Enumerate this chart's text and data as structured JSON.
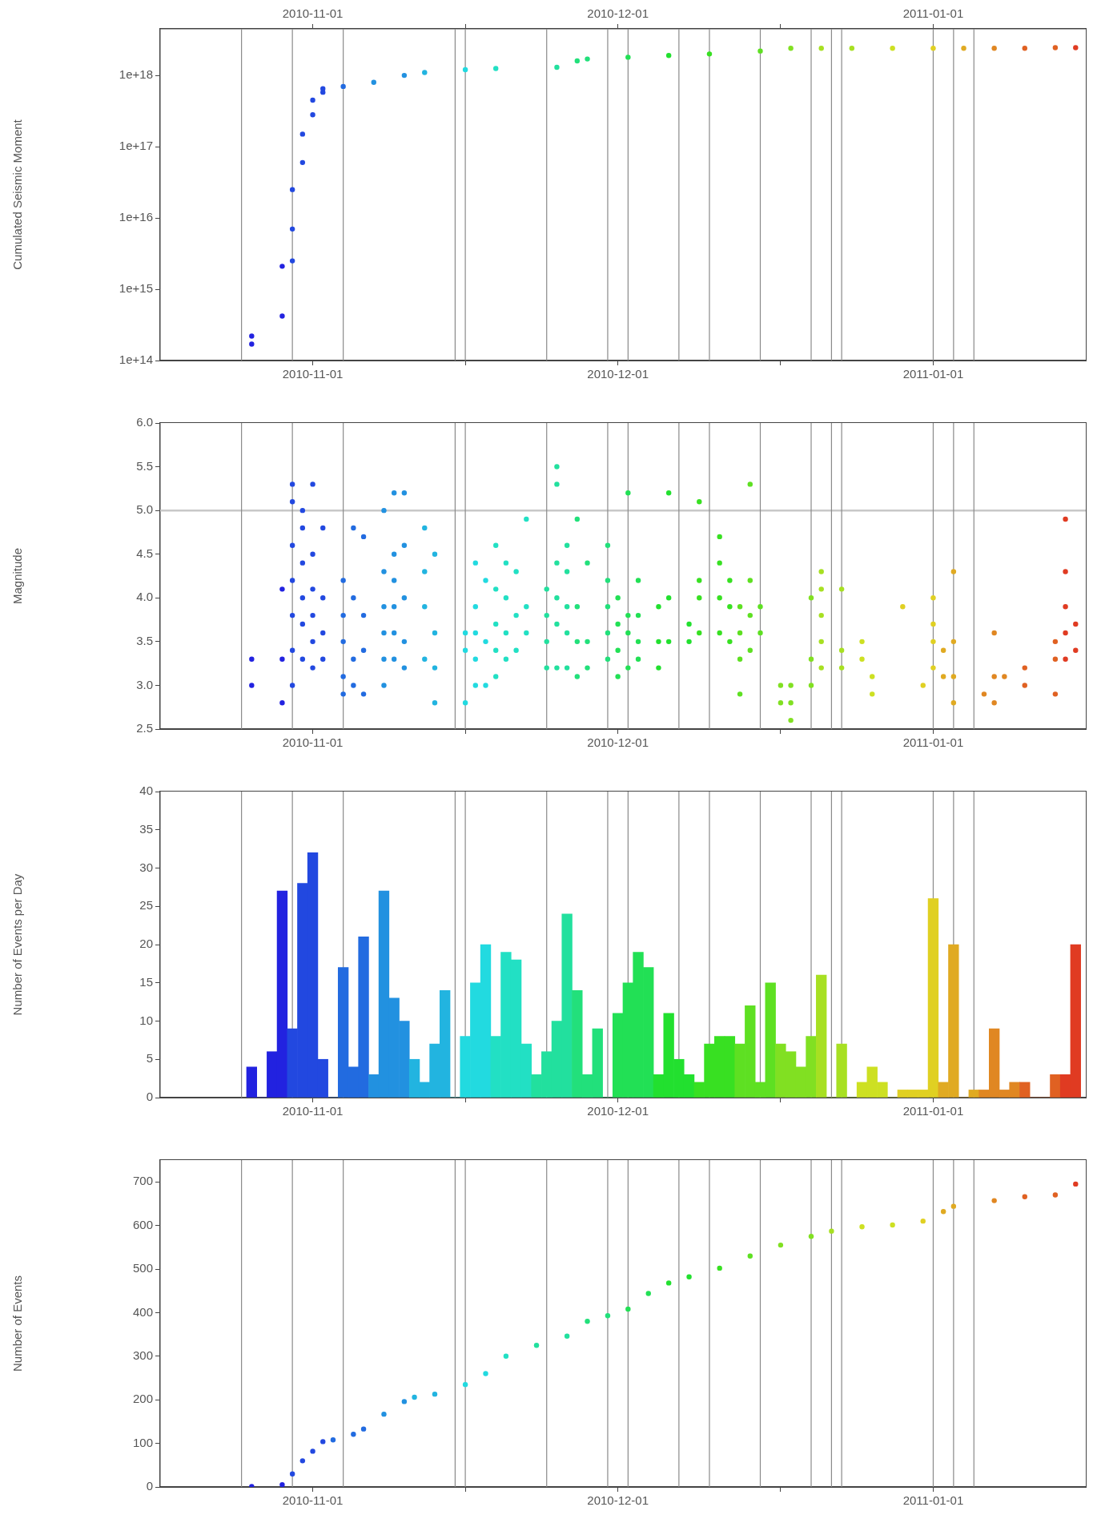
{
  "chart_data": [
    {
      "type": "scatter",
      "ylabel": "Cumulated Seismic Moment",
      "log": true,
      "marker": "circle",
      "x": [
        "2010-10-26",
        "2010-10-26",
        "2010-10-29",
        "2010-10-29",
        "2010-10-30",
        "2010-10-30",
        "2010-10-30",
        "2010-10-31",
        "2010-10-31",
        "2010-11-01",
        "2010-11-01",
        "2010-11-02",
        "2010-11-02",
        "2010-11-04",
        "2010-11-07",
        "2010-11-10",
        "2010-11-12",
        "2010-11-16",
        "2010-11-19",
        "2010-11-25",
        "2010-11-27",
        "2010-11-28",
        "2010-12-02",
        "2010-12-06",
        "2010-12-10",
        "2010-12-15",
        "2010-12-18",
        "2010-12-21",
        "2010-12-24",
        "2010-12-28",
        "2011-01-01",
        "2011-01-04",
        "2011-01-07",
        "2011-01-10",
        "2011-01-13",
        "2011-01-15"
      ],
      "values": [
        220000000000000.0,
        170000000000000.0,
        420000000000000.0,
        2100000000000000.0,
        2500000000000000.0,
        7000000000000000.0,
        2.5e+16,
        6e+16,
        1.5e+17,
        2.8e+17,
        4.5e+17,
        5.8e+17,
        6.5e+17,
        7e+17,
        8e+17,
        1e+18,
        1.1e+18,
        1.2e+18,
        1.25e+18,
        1.3e+18,
        1.6e+18,
        1.7e+18,
        1.8e+18,
        1.9e+18,
        2e+18,
        2.2e+18,
        2.4e+18,
        2.4e+18,
        2.4e+18,
        2.4e+18,
        2.4e+18,
        2.4e+18,
        2.4e+18,
        2.4e+18,
        2.45e+18,
        2.45e+18
      ],
      "colors": [
        "#2222e0",
        "#2222e0",
        "#2222e0",
        "#2222e0",
        "#2248e0",
        "#2248e0",
        "#2248e0",
        "#2248e0",
        "#2248e0",
        "#2248e0",
        "#2248e0",
        "#2248e0",
        "#2248e0",
        "#226be0",
        "#2291e0",
        "#2291e0",
        "#22b4e0",
        "#22dae0",
        "#22e0c4",
        "#22e09e",
        "#22e07b",
        "#22e07b",
        "#22e055",
        "#22e02f",
        "#38e022",
        "#5ee022",
        "#81e022",
        "#a7e022",
        "#a7e022",
        "#cde022",
        "#e0d022",
        "#e0aa22",
        "#e08722",
        "#e06122",
        "#e06122",
        "#e03b22"
      ],
      "xlim": [
        "2010-10-17",
        "2011-01-16"
      ],
      "xticks": [
        "2010-11-01",
        {
          "value": "2010-11-16",
          "label": null
        },
        "2010-12-01",
        {
          "value": "2010-12-17",
          "label": null
        },
        "2011-01-01"
      ],
      "x2lim": [
        "2010-10-17",
        "2011-01-16"
      ],
      "x2ticks": [
        "2010-11-01",
        {
          "value": "2010-11-16",
          "label": null
        },
        "2010-12-01",
        {
          "value": "2010-12-17",
          "label": null
        },
        "2011-01-01"
      ],
      "ylim": [
        100000000000000.0,
        4.5e+18
      ],
      "yticks": [
        {
          "value": 100000000000000.0,
          "label": "1e+14"
        },
        {
          "value": 1000000000000000.0,
          "label": "1e+15"
        },
        {
          "value": 1e+16,
          "label": "1e+16"
        },
        {
          "value": 1e+17,
          "label": "1e+17"
        },
        {
          "value": 1e+18,
          "label": "1e+18"
        }
      ],
      "ref_lines": [
        {
          "axis": "x",
          "value": "2010-10-25"
        },
        {
          "axis": "x",
          "value": "2010-10-30"
        },
        {
          "axis": "x",
          "value": "2010-11-04"
        },
        {
          "axis": "x",
          "value": "2010-11-15"
        },
        {
          "axis": "x",
          "value": "2010-11-16"
        },
        {
          "axis": "x",
          "value": "2010-11-24"
        },
        {
          "axis": "x",
          "value": "2010-11-30"
        },
        {
          "axis": "x",
          "value": "2010-12-02"
        },
        {
          "axis": "x",
          "value": "2010-12-07"
        },
        {
          "axis": "x",
          "value": "2010-12-10"
        },
        {
          "axis": "x",
          "value": "2010-12-15"
        },
        {
          "axis": "x",
          "value": "2010-12-20"
        },
        {
          "axis": "x",
          "value": "2010-12-22"
        },
        {
          "axis": "x",
          "value": "2010-12-23"
        },
        {
          "axis": "x",
          "value": "2011-01-01"
        },
        {
          "axis": "x",
          "value": "2011-01-03"
        },
        {
          "axis": "x",
          "value": "2011-01-05"
        }
      ]
    },
    {
      "type": "scatter",
      "ylabel": "Magnitude",
      "marker": "circle",
      "series": [
        {
          "color": "#2222e0",
          "x": [
            "2010-10-26",
            "2010-10-26"
          ],
          "values": [
            3.3,
            3.0
          ]
        },
        {
          "color": "#2222e0",
          "x": [
            "2010-10-29",
            "2010-10-29",
            "2010-10-29"
          ],
          "values": [
            2.8,
            3.3,
            4.1
          ]
        },
        {
          "color": "#2248e0",
          "x": [
            "2010-10-30",
            "2010-10-30",
            "2010-10-30",
            "2010-10-30",
            "2010-10-30",
            "2010-10-30",
            "2010-10-30"
          ],
          "values": [
            3.0,
            3.4,
            3.8,
            4.2,
            4.6,
            5.1,
            5.3
          ]
        },
        {
          "color": "#2248e0",
          "x": [
            "2010-10-31",
            "2010-10-31",
            "2010-10-31",
            "2010-10-31",
            "2010-10-31",
            "2010-10-31"
          ],
          "values": [
            3.3,
            3.7,
            4.0,
            4.4,
            4.8,
            5.0
          ]
        },
        {
          "color": "#2248e0",
          "x": [
            "2010-11-01",
            "2010-11-01",
            "2010-11-01",
            "2010-11-01",
            "2010-11-01",
            "2010-11-01"
          ],
          "values": [
            3.2,
            3.5,
            3.8,
            4.1,
            4.5,
            5.3
          ]
        },
        {
          "color": "#2248e0",
          "x": [
            "2010-11-02",
            "2010-11-02",
            "2010-11-02",
            "2010-11-02"
          ],
          "values": [
            3.3,
            3.6,
            4.0,
            4.8
          ]
        },
        {
          "color": "#226be0",
          "x": [
            "2010-11-04",
            "2010-11-04",
            "2010-11-04",
            "2010-11-04",
            "2010-11-04"
          ],
          "values": [
            2.9,
            3.1,
            3.5,
            3.8,
            4.2
          ]
        },
        {
          "color": "#226be0",
          "x": [
            "2010-11-05",
            "2010-11-05",
            "2010-11-05",
            "2010-11-05"
          ],
          "values": [
            3.0,
            3.3,
            4.0,
            4.8
          ]
        },
        {
          "color": "#226be0",
          "x": [
            "2010-11-06",
            "2010-11-06",
            "2010-11-06",
            "2010-11-06"
          ],
          "values": [
            2.9,
            3.4,
            3.8,
            4.7
          ]
        },
        {
          "color": "#2291e0",
          "x": [
            "2010-11-08",
            "2010-11-08",
            "2010-11-08",
            "2010-11-08",
            "2010-11-08",
            "2010-11-08"
          ],
          "values": [
            3.0,
            3.3,
            3.6,
            3.9,
            4.3,
            5.0
          ]
        },
        {
          "color": "#2291e0",
          "x": [
            "2010-11-09",
            "2010-11-09",
            "2010-11-09",
            "2010-11-09",
            "2010-11-09",
            "2010-11-09"
          ],
          "values": [
            3.3,
            3.6,
            3.9,
            4.2,
            4.5,
            5.2
          ]
        },
        {
          "color": "#2291e0",
          "x": [
            "2010-11-10",
            "2010-11-10",
            "2010-11-10",
            "2010-11-10",
            "2010-11-10"
          ],
          "values": [
            3.2,
            3.5,
            4.0,
            4.6,
            5.2
          ]
        },
        {
          "color": "#22b4e0",
          "x": [
            "2010-11-12",
            "2010-11-12",
            "2010-11-12",
            "2010-11-12"
          ],
          "values": [
            3.3,
            3.9,
            4.3,
            4.8
          ]
        },
        {
          "color": "#22b4e0",
          "x": [
            "2010-11-13",
            "2010-11-13",
            "2010-11-13",
            "2010-11-13"
          ],
          "values": [
            2.8,
            3.2,
            3.6,
            4.5
          ]
        },
        {
          "color": "#22dae0",
          "x": [
            "2010-11-16",
            "2010-11-16",
            "2010-11-16"
          ],
          "values": [
            2.8,
            3.4,
            3.6
          ]
        },
        {
          "color": "#22dae0",
          "x": [
            "2010-11-17",
            "2010-11-17",
            "2010-11-17",
            "2010-11-17",
            "2010-11-17"
          ],
          "values": [
            3.0,
            3.3,
            3.6,
            3.9,
            4.4
          ]
        },
        {
          "color": "#22dae0",
          "x": [
            "2010-11-18",
            "2010-11-18",
            "2010-11-18"
          ],
          "values": [
            3.0,
            3.5,
            4.2
          ]
        },
        {
          "color": "#22e0c4",
          "x": [
            "2010-11-19",
            "2010-11-19",
            "2010-11-19",
            "2010-11-19",
            "2010-11-19"
          ],
          "values": [
            3.1,
            3.4,
            3.7,
            4.1,
            4.6
          ]
        },
        {
          "color": "#22e0c4",
          "x": [
            "2010-11-20",
            "2010-11-20",
            "2010-11-20",
            "2010-11-20"
          ],
          "values": [
            3.3,
            3.6,
            4.0,
            4.4
          ]
        },
        {
          "color": "#22e0c4",
          "x": [
            "2010-11-21",
            "2010-11-21",
            "2010-11-21"
          ],
          "values": [
            3.4,
            3.8,
            4.3
          ]
        },
        {
          "color": "#22e0c4",
          "x": [
            "2010-11-22",
            "2010-11-22",
            "2010-11-22"
          ],
          "values": [
            3.6,
            3.9,
            4.9
          ]
        },
        {
          "color": "#22e09e",
          "x": [
            "2010-11-24",
            "2010-11-24",
            "2010-11-24",
            "2010-11-24"
          ],
          "values": [
            3.2,
            3.5,
            3.8,
            4.1
          ]
        },
        {
          "color": "#22e09e",
          "x": [
            "2010-11-25",
            "2010-11-25",
            "2010-11-25",
            "2010-11-25",
            "2010-11-25",
            "2010-11-25"
          ],
          "values": [
            3.2,
            3.7,
            4.0,
            4.4,
            5.3,
            5.5
          ]
        },
        {
          "color": "#22e09e",
          "x": [
            "2010-11-26",
            "2010-11-26",
            "2010-11-26",
            "2010-11-26",
            "2010-11-26"
          ],
          "values": [
            3.2,
            3.6,
            3.9,
            4.3,
            4.6
          ]
        },
        {
          "color": "#22e07b",
          "x": [
            "2010-11-27",
            "2010-11-27",
            "2010-11-27",
            "2010-11-27"
          ],
          "values": [
            3.1,
            3.5,
            3.9,
            4.9
          ]
        },
        {
          "color": "#22e07b",
          "x": [
            "2010-11-28",
            "2010-11-28",
            "2010-11-28"
          ],
          "values": [
            3.2,
            3.5,
            4.4
          ]
        },
        {
          "color": "#22e07b",
          "x": [
            "2010-11-30",
            "2010-11-30",
            "2010-11-30",
            "2010-11-30",
            "2010-11-30"
          ],
          "values": [
            3.3,
            3.6,
            3.9,
            4.2,
            4.6
          ]
        },
        {
          "color": "#22e055",
          "x": [
            "2010-12-01",
            "2010-12-01",
            "2010-12-01",
            "2010-12-01"
          ],
          "values": [
            3.1,
            3.4,
            3.7,
            4.0
          ]
        },
        {
          "color": "#22e055",
          "x": [
            "2010-12-02",
            "2010-12-02",
            "2010-12-02",
            "2010-12-02"
          ],
          "values": [
            3.2,
            3.6,
            3.8,
            5.2
          ]
        },
        {
          "color": "#22e055",
          "x": [
            "2010-12-03",
            "2010-12-03",
            "2010-12-03",
            "2010-12-03"
          ],
          "values": [
            3.3,
            3.5,
            3.8,
            4.2
          ]
        },
        {
          "color": "#22e02f",
          "x": [
            "2010-12-05",
            "2010-12-05",
            "2010-12-05"
          ],
          "values": [
            3.2,
            3.5,
            3.9
          ]
        },
        {
          "color": "#22e02f",
          "x": [
            "2010-12-06",
            "2010-12-06",
            "2010-12-06"
          ],
          "values": [
            3.5,
            4.0,
            5.2
          ]
        },
        {
          "color": "#22e02f",
          "x": [
            "2010-12-08",
            "2010-12-08"
          ],
          "values": [
            3.5,
            3.7
          ]
        },
        {
          "color": "#38e022",
          "x": [
            "2010-12-09",
            "2010-12-09",
            "2010-12-09",
            "2010-12-09"
          ],
          "values": [
            3.6,
            4.0,
            4.2,
            5.1
          ]
        },
        {
          "color": "#38e022",
          "x": [
            "2010-12-11",
            "2010-12-11",
            "2010-12-11",
            "2010-12-11"
          ],
          "values": [
            3.6,
            4.0,
            4.4,
            4.7
          ]
        },
        {
          "color": "#38e022",
          "x": [
            "2010-12-12",
            "2010-12-12",
            "2010-12-12"
          ],
          "values": [
            3.5,
            3.9,
            4.2
          ]
        },
        {
          "color": "#5ee022",
          "x": [
            "2010-12-13",
            "2010-12-13",
            "2010-12-13",
            "2010-12-13"
          ],
          "values": [
            2.9,
            3.3,
            3.6,
            3.9
          ]
        },
        {
          "color": "#5ee022",
          "x": [
            "2010-12-14",
            "2010-12-14",
            "2010-12-14",
            "2010-12-14"
          ],
          "values": [
            3.4,
            3.8,
            4.2,
            5.3
          ]
        },
        {
          "color": "#5ee022",
          "x": [
            "2010-12-15",
            "2010-12-15"
          ],
          "values": [
            3.6,
            3.9
          ]
        },
        {
          "color": "#81e022",
          "x": [
            "2010-12-17",
            "2010-12-17"
          ],
          "values": [
            2.8,
            3.0
          ]
        },
        {
          "color": "#81e022",
          "x": [
            "2010-12-18",
            "2010-12-18",
            "2010-12-18"
          ],
          "values": [
            2.6,
            2.8,
            3.0
          ]
        },
        {
          "color": "#81e022",
          "x": [
            "2010-12-20",
            "2010-12-20",
            "2010-12-20"
          ],
          "values": [
            3.0,
            3.3,
            4.0
          ]
        },
        {
          "color": "#a7e022",
          "x": [
            "2010-12-21",
            "2010-12-21",
            "2010-12-21",
            "2010-12-21",
            "2010-12-21"
          ],
          "values": [
            3.2,
            3.5,
            3.8,
            4.1,
            4.3
          ]
        },
        {
          "color": "#a7e022",
          "x": [
            "2010-12-23",
            "2010-12-23",
            "2010-12-23"
          ],
          "values": [
            3.2,
            3.4,
            4.1
          ]
        },
        {
          "color": "#cde022",
          "x": [
            "2010-12-25",
            "2010-12-25"
          ],
          "values": [
            3.3,
            3.5
          ]
        },
        {
          "color": "#cde022",
          "x": [
            "2010-12-26",
            "2010-12-26"
          ],
          "values": [
            2.9,
            3.1
          ]
        },
        {
          "color": "#e0d022",
          "x": [
            "2010-12-29"
          ],
          "values": [
            3.9
          ]
        },
        {
          "color": "#e0d022",
          "x": [
            "2010-12-31"
          ],
          "values": [
            3.0
          ]
        },
        {
          "color": "#e0d022",
          "x": [
            "2011-01-01",
            "2011-01-01",
            "2011-01-01",
            "2011-01-01"
          ],
          "values": [
            3.2,
            3.5,
            3.7,
            4.0
          ]
        },
        {
          "color": "#e0aa22",
          "x": [
            "2011-01-02",
            "2011-01-02"
          ],
          "values": [
            3.1,
            3.4
          ]
        },
        {
          "color": "#e0aa22",
          "x": [
            "2011-01-03",
            "2011-01-03",
            "2011-01-03",
            "2011-01-03"
          ],
          "values": [
            2.8,
            3.1,
            3.5,
            4.3
          ]
        },
        {
          "color": "#e08722",
          "x": [
            "2011-01-06"
          ],
          "values": [
            2.9
          ]
        },
        {
          "color": "#e08722",
          "x": [
            "2011-01-07",
            "2011-01-07",
            "2011-01-07"
          ],
          "values": [
            2.8,
            3.1,
            3.6
          ]
        },
        {
          "color": "#e08722",
          "x": [
            "2011-01-08"
          ],
          "values": [
            3.1
          ]
        },
        {
          "color": "#e06122",
          "x": [
            "2011-01-10",
            "2011-01-10"
          ],
          "values": [
            3.0,
            3.2
          ]
        },
        {
          "color": "#e06122",
          "x": [
            "2011-01-13",
            "2011-01-13",
            "2011-01-13"
          ],
          "values": [
            2.9,
            3.3,
            3.5
          ]
        },
        {
          "color": "#e03b22",
          "x": [
            "2011-01-14",
            "2011-01-14",
            "2011-01-14",
            "2011-01-14",
            "2011-01-14"
          ],
          "values": [
            3.3,
            3.6,
            3.9,
            4.3,
            4.9
          ]
        },
        {
          "color": "#e03b22",
          "x": [
            "2011-01-15",
            "2011-01-15"
          ],
          "values": [
            3.4,
            3.7
          ]
        }
      ],
      "xlim": [
        "2010-10-17",
        "2011-01-16"
      ],
      "xticks": [
        "2010-11-01",
        {
          "value": "2010-11-16",
          "label": null
        },
        "2010-12-01",
        {
          "value": "2010-12-17",
          "label": null
        },
        "2011-01-01"
      ],
      "ylim": [
        2.5,
        6
      ],
      "yticks": [
        2.5,
        {
          "value": 3,
          "label": "3.0"
        },
        3.5,
        {
          "value": 4,
          "label": "4.0"
        },
        4.5,
        {
          "value": 5,
          "label": "5.0"
        },
        5.5,
        {
          "value": 6,
          "label": "6.0"
        }
      ],
      "ref_lines": [
        {
          "axis": "y",
          "value": 5,
          "color": "#c8c8c8"
        },
        {
          "axis": "x",
          "value": "2010-10-25"
        },
        {
          "axis": "x",
          "value": "2010-10-30"
        },
        {
          "axis": "x",
          "value": "2010-11-04"
        },
        {
          "axis": "x",
          "value": "2010-11-15"
        },
        {
          "axis": "x",
          "value": "2010-11-16"
        },
        {
          "axis": "x",
          "value": "2010-11-24"
        },
        {
          "axis": "x",
          "value": "2010-11-30"
        },
        {
          "axis": "x",
          "value": "2010-12-02"
        },
        {
          "axis": "x",
          "value": "2010-12-07"
        },
        {
          "axis": "x",
          "value": "2010-12-10"
        },
        {
          "axis": "x",
          "value": "2010-12-15"
        },
        {
          "axis": "x",
          "value": "2010-12-20"
        },
        {
          "axis": "x",
          "value": "2010-12-22"
        },
        {
          "axis": "x",
          "value": "2010-12-23"
        },
        {
          "axis": "x",
          "value": "2011-01-01"
        },
        {
          "axis": "x",
          "value": "2011-01-03"
        },
        {
          "axis": "x",
          "value": "2011-01-05"
        }
      ]
    },
    {
      "type": "bar",
      "ylabel": "Number of Events per Day",
      "x": [
        "2010-10-26",
        "2010-10-27",
        "2010-10-28",
        "2010-10-29",
        "2010-10-30",
        "2010-10-31",
        "2010-11-01",
        "2010-11-02",
        "2010-11-03",
        "2010-11-04",
        "2010-11-05",
        "2010-11-06",
        "2010-11-07",
        "2010-11-08",
        "2010-11-09",
        "2010-11-10",
        "2010-11-11",
        "2010-11-12",
        "2010-11-13",
        "2010-11-14",
        "2010-11-15",
        "2010-11-16",
        "2010-11-17",
        "2010-11-18",
        "2010-11-19",
        "2010-11-20",
        "2010-11-21",
        "2010-11-22",
        "2010-11-23",
        "2010-11-24",
        "2010-11-25",
        "2010-11-26",
        "2010-11-27",
        "2010-11-28",
        "2010-11-29",
        "2010-11-30",
        "2010-12-01",
        "2010-12-02",
        "2010-12-03",
        "2010-12-04",
        "2010-12-05",
        "2010-12-06",
        "2010-12-07",
        "2010-12-08",
        "2010-12-09",
        "2010-12-10",
        "2010-12-11",
        "2010-12-12",
        "2010-12-13",
        "2010-12-14",
        "2010-12-15",
        "2010-12-16",
        "2010-12-17",
        "2010-12-18",
        "2010-12-19",
        "2010-12-20",
        "2010-12-21",
        "2010-12-22",
        "2010-12-23",
        "2010-12-24",
        "2010-12-25",
        "2010-12-26",
        "2010-12-27",
        "2010-12-28",
        "2010-12-29",
        "2010-12-30",
        "2010-12-31",
        "2011-01-01",
        "2011-01-02",
        "2011-01-03",
        "2011-01-04",
        "2011-01-05",
        "2011-01-06",
        "2011-01-07",
        "2011-01-08",
        "2011-01-09",
        "2011-01-10",
        "2011-01-11",
        "2011-01-12",
        "2011-01-13",
        "2011-01-14",
        "2011-01-15"
      ],
      "values": [
        4,
        0,
        6,
        27,
        9,
        28,
        32,
        5,
        0,
        17,
        4,
        21,
        3,
        27,
        13,
        10,
        5,
        2,
        7,
        14,
        0,
        8,
        15,
        20,
        8,
        19,
        18,
        7,
        3,
        6,
        10,
        24,
        14,
        3,
        9,
        0,
        11,
        15,
        19,
        17,
        3,
        11,
        5,
        3,
        2,
        7,
        8,
        8,
        7,
        12,
        2,
        15,
        7,
        6,
        4,
        8,
        16,
        0,
        7,
        0,
        2,
        4,
        2,
        0,
        1,
        1,
        1,
        26,
        2,
        20,
        0,
        1,
        1,
        9,
        1,
        2,
        2,
        0,
        0,
        3,
        3,
        20
      ],
      "colors": [
        "#2222e0",
        "#2222e0",
        "#2222e0",
        "#2222e0",
        "#2248e0",
        "#2248e0",
        "#2248e0",
        "#2248e0",
        "#226be0",
        "#226be0",
        "#226be0",
        "#226be0",
        "#2291e0",
        "#2291e0",
        "#2291e0",
        "#2291e0",
        "#22b4e0",
        "#22b4e0",
        "#22b4e0",
        "#22b4e0",
        "#22dae0",
        "#22dae0",
        "#22dae0",
        "#22dae0",
        "#22e0c4",
        "#22e0c4",
        "#22e0c4",
        "#22e0c4",
        "#22e09e",
        "#22e09e",
        "#22e09e",
        "#22e09e",
        "#22e07b",
        "#22e07b",
        "#22e07b",
        "#22e07b",
        "#22e055",
        "#22e055",
        "#22e055",
        "#22e055",
        "#22e02f",
        "#22e02f",
        "#22e02f",
        "#22e02f",
        "#38e022",
        "#38e022",
        "#38e022",
        "#38e022",
        "#5ee022",
        "#5ee022",
        "#5ee022",
        "#5ee022",
        "#81e022",
        "#81e022",
        "#81e022",
        "#81e022",
        "#a7e022",
        "#a7e022",
        "#a7e022",
        "#a7e022",
        "#cde022",
        "#cde022",
        "#cde022",
        "#cde022",
        "#e0d022",
        "#e0d022",
        "#e0d022",
        "#e0d022",
        "#e0aa22",
        "#e0aa22",
        "#e0aa22",
        "#e0aa22",
        "#e08722",
        "#e08722",
        "#e08722",
        "#e08722",
        "#e06122",
        "#e06122",
        "#e06122",
        "#e06122",
        "#e03b22",
        "#e03b22"
      ],
      "xlim": [
        "2010-10-17",
        "2011-01-16"
      ],
      "xticks": [
        "2010-11-01",
        {
          "value": "2010-11-16",
          "label": null
        },
        "2010-12-01",
        {
          "value": "2010-12-17",
          "label": null
        },
        "2011-01-01"
      ],
      "ylim": [
        0,
        40
      ],
      "yticks": [
        0,
        5,
        10,
        15,
        20,
        25,
        30,
        35,
        40
      ],
      "ref_lines": [
        {
          "axis": "x",
          "value": "2010-10-25"
        },
        {
          "axis": "x",
          "value": "2010-10-30"
        },
        {
          "axis": "x",
          "value": "2010-11-04"
        },
        {
          "axis": "x",
          "value": "2010-11-15"
        },
        {
          "axis": "x",
          "value": "2010-11-16"
        },
        {
          "axis": "x",
          "value": "2010-11-24"
        },
        {
          "axis": "x",
          "value": "2010-11-30"
        },
        {
          "axis": "x",
          "value": "2010-12-02"
        },
        {
          "axis": "x",
          "value": "2010-12-07"
        },
        {
          "axis": "x",
          "value": "2010-12-10"
        },
        {
          "axis": "x",
          "value": "2010-12-15"
        },
        {
          "axis": "x",
          "value": "2010-12-20"
        },
        {
          "axis": "x",
          "value": "2010-12-22"
        },
        {
          "axis": "x",
          "value": "2010-12-23"
        },
        {
          "axis": "x",
          "value": "2011-01-01"
        },
        {
          "axis": "x",
          "value": "2011-01-03"
        },
        {
          "axis": "x",
          "value": "2011-01-05"
        }
      ]
    },
    {
      "type": "scatter",
      "ylabel": "Number of Events",
      "marker": "circle",
      "x": [
        "2010-10-26",
        "2010-10-29",
        "2010-10-30",
        "2010-10-31",
        "2010-11-01",
        "2010-11-02",
        "2010-11-03",
        "2010-11-05",
        "2010-11-06",
        "2010-11-08",
        "2010-11-10",
        "2010-11-11",
        "2010-11-13",
        "2010-11-16",
        "2010-11-18",
        "2010-11-20",
        "2010-11-23",
        "2010-11-26",
        "2010-11-28",
        "2010-11-30",
        "2010-12-02",
        "2010-12-04",
        "2010-12-06",
        "2010-12-08",
        "2010-12-11",
        "2010-12-14",
        "2010-12-17",
        "2010-12-20",
        "2010-12-22",
        "2010-12-25",
        "2010-12-28",
        "2010-12-31",
        "2011-01-02",
        "2011-01-03",
        "2011-01-07",
        "2011-01-10",
        "2011-01-13",
        "2011-01-15"
      ],
      "values": [
        1,
        5,
        30,
        60,
        82,
        104,
        108,
        121,
        133,
        167,
        196,
        206,
        213,
        235,
        260,
        300,
        325,
        346,
        380,
        393,
        408,
        444,
        468,
        482,
        502,
        530,
        555,
        575,
        587,
        597,
        601,
        610,
        632,
        644,
        657,
        666,
        670,
        695
      ],
      "colors": [
        "#2222e0",
        "#2222e0",
        "#2248e0",
        "#2248e0",
        "#2248e0",
        "#2248e0",
        "#226be0",
        "#226be0",
        "#226be0",
        "#2291e0",
        "#2291e0",
        "#22b4e0",
        "#22b4e0",
        "#22dae0",
        "#22dae0",
        "#22e0c4",
        "#22e09e",
        "#22e09e",
        "#22e07b",
        "#22e07b",
        "#22e055",
        "#22e055",
        "#22e02f",
        "#22e02f",
        "#38e022",
        "#5ee022",
        "#81e022",
        "#81e022",
        "#a7e022",
        "#cde022",
        "#cde022",
        "#e0d022",
        "#e0aa22",
        "#e0aa22",
        "#e08722",
        "#e06122",
        "#e06122",
        "#e03b22"
      ],
      "xlim": [
        "2010-10-17",
        "2011-01-16"
      ],
      "xticks": [
        "2010-11-01",
        {
          "value": "2010-11-16",
          "label": null
        },
        "2010-12-01",
        {
          "value": "2010-12-17",
          "label": null
        },
        "2011-01-01"
      ],
      "ylim": [
        0,
        750
      ],
      "yticks": [
        0,
        100,
        200,
        300,
        400,
        500,
        600,
        700
      ],
      "ref_lines": [
        {
          "axis": "x",
          "value": "2010-10-25"
        },
        {
          "axis": "x",
          "value": "2010-10-30"
        },
        {
          "axis": "x",
          "value": "2010-11-04"
        },
        {
          "axis": "x",
          "value": "2010-11-15"
        },
        {
          "axis": "x",
          "value": "2010-11-16"
        },
        {
          "axis": "x",
          "value": "2010-11-24"
        },
        {
          "axis": "x",
          "value": "2010-11-30"
        },
        {
          "axis": "x",
          "value": "2010-12-02"
        },
        {
          "axis": "x",
          "value": "2010-12-07"
        },
        {
          "axis": "x",
          "value": "2010-12-10"
        },
        {
          "axis": "x",
          "value": "2010-12-15"
        },
        {
          "axis": "x",
          "value": "2010-12-20"
        },
        {
          "axis": "x",
          "value": "2010-12-22"
        },
        {
          "axis": "x",
          "value": "2010-12-23"
        },
        {
          "axis": "x",
          "value": "2011-01-01"
        },
        {
          "axis": "x",
          "value": "2011-01-03"
        },
        {
          "axis": "x",
          "value": "2011-01-05"
        }
      ]
    }
  ]
}
